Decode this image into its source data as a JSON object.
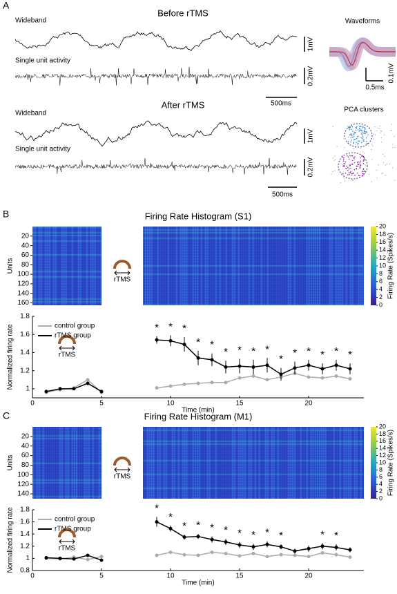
{
  "panel_a": {
    "label": "A",
    "before_title": "Before rTMS",
    "after_title": "After rTMS",
    "wideband": "Wideband",
    "single_unit": "Single unit activity",
    "scale_wide": "1mV",
    "scale_unit": "0.2mV",
    "scale_time": "500ms",
    "waveforms_title": "Waveforms",
    "wave_scale_v": "0.1mV",
    "wave_scale_t": "0.5ms",
    "pca_title": "PCA clusters"
  },
  "chart_data": [
    {
      "type": "heatmap",
      "panel": "B",
      "title": "Firing Rate Histogram (S1)",
      "ylabel": "Units",
      "ylim": [
        0,
        165
      ],
      "yticks": [
        20,
        40,
        60,
        80,
        100,
        120,
        140,
        160
      ],
      "colorbar_label": "Firing Rate (Spikes/s)",
      "clim": [
        0,
        20
      ],
      "cticks": [
        0,
        2,
        4,
        6,
        8,
        10,
        12,
        14,
        16,
        18,
        20
      ],
      "stim_label": "rTMS"
    },
    {
      "type": "line",
      "xlabel": "Time (min)",
      "ylabel": "Normalized firing rate",
      "stim_label": "rTMS",
      "xlim": [
        0,
        24
      ],
      "xticks": [
        0,
        5,
        10,
        15,
        20
      ],
      "ylim": [
        0.9,
        1.8
      ],
      "yticks": [
        1,
        1.2,
        1.4,
        1.6,
        1.8
      ],
      "x": [
        1,
        2,
        3,
        4,
        5,
        6,
        7,
        8,
        9,
        10,
        11,
        12,
        13,
        14,
        15,
        16,
        17,
        18,
        19,
        20,
        21,
        22,
        23
      ],
      "series": [
        {
          "name": "rTMS group",
          "color": "#000000",
          "values": [
            0.97,
            1.0,
            1.0,
            1.06,
            0.97,
            null,
            null,
            null,
            1.54,
            1.53,
            1.49,
            1.34,
            1.32,
            1.24,
            1.25,
            1.24,
            1.26,
            1.16,
            1.23,
            1.26,
            1.22,
            1.26,
            1.22
          ],
          "errors": [
            0.02,
            0.01,
            0.01,
            0.02,
            0.02,
            null,
            null,
            null,
            0.04,
            0.06,
            0.08,
            0.08,
            0.07,
            0.07,
            0.08,
            0.08,
            0.08,
            0.07,
            0.07,
            0.06,
            0.06,
            0.06,
            0.06
          ]
        },
        {
          "name": "control group",
          "color": "#aaaaaa",
          "values": [
            0.96,
            0.99,
            1.01,
            1.1,
            0.96,
            null,
            null,
            null,
            1.01,
            1.03,
            1.05,
            1.06,
            1.07,
            1.07,
            1.12,
            1.14,
            1.1,
            1.13,
            1.17,
            1.13,
            1.12,
            1.14,
            1.11
          ]
        }
      ],
      "marker": "*",
      "marker_x": [
        9,
        10,
        11,
        12,
        13,
        14,
        15,
        16,
        17,
        18,
        19,
        20,
        21,
        22,
        23
      ]
    },
    {
      "type": "heatmap",
      "panel": "C",
      "title": "Firing Rate Histogram (M1)",
      "ylabel": "Units",
      "ylim": [
        0,
        150
      ],
      "yticks": [
        20,
        40,
        60,
        80,
        100,
        120,
        140
      ],
      "colorbar_label": "Firing Rate (Spikes/s)",
      "clim": [
        0,
        20
      ],
      "cticks": [
        0,
        2,
        4,
        6,
        8,
        10,
        12,
        14,
        16,
        18,
        20
      ],
      "stim_label": "rTMS"
    },
    {
      "type": "line",
      "xlabel": "Time (min)",
      "ylabel": "Normalized firing rate",
      "stim_label": "rTMS",
      "xlim": [
        0,
        24
      ],
      "xticks": [
        0,
        5,
        10,
        15,
        20
      ],
      "ylim": [
        0.8,
        1.8
      ],
      "yticks": [
        0.8,
        1,
        1.2,
        1.4,
        1.6,
        1.8
      ],
      "x": [
        1,
        2,
        3,
        4,
        5,
        6,
        7,
        8,
        9,
        10,
        11,
        12,
        13,
        14,
        15,
        16,
        17,
        18,
        19,
        20,
        21,
        22,
        23
      ],
      "series": [
        {
          "name": "rTMS group",
          "color": "#000000",
          "values": [
            1.01,
            1.0,
            0.99,
            1.05,
            0.97,
            null,
            null,
            null,
            1.6,
            1.49,
            1.35,
            1.36,
            1.31,
            1.27,
            1.22,
            1.19,
            1.23,
            1.19,
            1.12,
            1.16,
            1.2,
            1.18,
            1.14
          ],
          "errors": [
            0.01,
            0.01,
            0.01,
            0.01,
            0.01,
            null,
            null,
            null,
            0.08,
            0.05,
            0.04,
            0.04,
            0.05,
            0.05,
            0.05,
            0.05,
            0.05,
            0.04,
            0.04,
            0.05,
            0.05,
            0.05,
            0.04
          ]
        },
        {
          "name": "control group",
          "color": "#aaaaaa",
          "values": [
            1.0,
            0.99,
            1.02,
            0.98,
            1.03,
            null,
            null,
            null,
            1.05,
            1.1,
            1.06,
            1.05,
            1.1,
            1.08,
            1.04,
            1.08,
            1.03,
            1.06,
            1.05,
            1.03,
            1.09,
            1.06,
            1.02
          ]
        }
      ],
      "marker": "*",
      "marker_x": [
        9,
        10,
        11,
        12,
        13,
        14,
        15,
        16,
        17,
        18,
        21,
        22
      ]
    }
  ]
}
